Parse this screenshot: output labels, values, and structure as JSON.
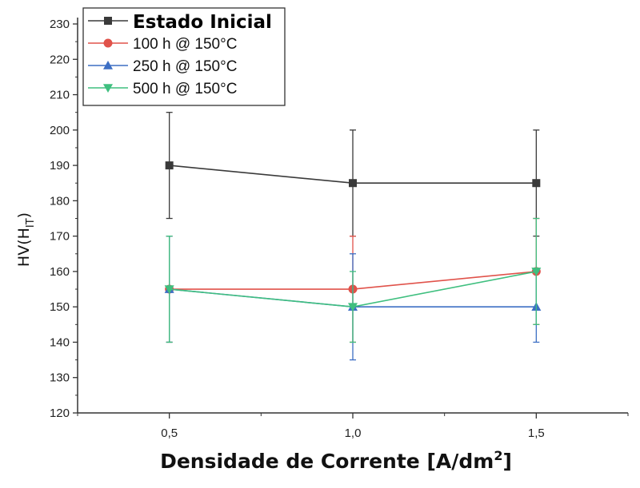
{
  "chart_data": {
    "type": "line",
    "xlabel": "Densidade de Corrente [A/dm",
    "xlabel_sup": "2",
    "xlabel_end": "]",
    "ylabel": "HV(H",
    "ylabel_sub": "IT",
    "ylabel_end": ")",
    "x": [
      0.5,
      1.0,
      1.5
    ],
    "x_tick_labels": [
      "0,5",
      "1,0",
      "1,5"
    ],
    "xlim": [
      0.25,
      1.75
    ],
    "ylim": [
      120,
      230
    ],
    "y_ticks": [
      120,
      130,
      140,
      150,
      160,
      170,
      180,
      190,
      200,
      210,
      220,
      230
    ],
    "grid": false,
    "legend_position": "top-left",
    "series": [
      {
        "name": "Estado Inicial",
        "marker": "square",
        "color": "#3a3a3a",
        "values": [
          190,
          185,
          185
        ],
        "errors": [
          15,
          15,
          15
        ]
      },
      {
        "name": "100 h @ 150°C",
        "marker": "circle",
        "color": "#e0524a",
        "values": [
          155,
          155,
          160
        ],
        "errors": [
          15,
          15,
          15
        ]
      },
      {
        "name": "250 h @ 150°C",
        "marker": "triangle-up",
        "color": "#3d6fc4",
        "values": [
          155,
          150,
          150
        ],
        "errors": [
          15,
          15,
          10
        ]
      },
      {
        "name": "500 h @ 150°C",
        "marker": "triangle-down",
        "color": "#3fbf7f",
        "values": [
          155,
          150,
          160
        ],
        "errors": [
          15,
          10,
          15
        ]
      }
    ]
  }
}
